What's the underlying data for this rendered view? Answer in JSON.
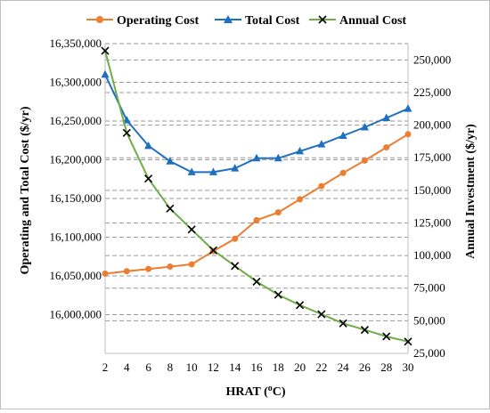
{
  "chart_data": {
    "type": "line",
    "xlabel": "HRAT (",
    "xlabel_sup": "o",
    "xlabel_end": "C)",
    "ylabel_left": "Operating and Total Cost ($/yr)",
    "ylabel_right": "Annual Investment ($/yr)",
    "x": [
      2,
      4,
      6,
      8,
      10,
      12,
      14,
      16,
      18,
      20,
      22,
      24,
      26,
      28,
      30
    ],
    "x_tick_labels": [
      "2",
      "4",
      "6",
      "8",
      "10",
      "12",
      "14",
      "16",
      "18",
      "20",
      "22",
      "24",
      "26",
      "28",
      "30"
    ],
    "y_left_range": [
      15950000,
      16350000
    ],
    "y_left_tick_labels": [
      "16,350,000",
      "16,300,000",
      "16,250,000",
      "16,200,000",
      "16,150,000",
      "16,100,000",
      "16,050,000",
      "16,000,000"
    ],
    "y_left_tick_values": [
      16350000,
      16300000,
      16250000,
      16200000,
      16150000,
      16100000,
      16050000,
      16000000
    ],
    "y_right_range": [
      25000,
      262500
    ],
    "y_right_tick_labels": [
      "250,000",
      "225,000",
      "200,000",
      "175,000",
      "150,000",
      "125,000",
      "100,000",
      "75,000",
      "50,000",
      "25,000"
    ],
    "y_right_tick_values": [
      250000,
      225000,
      200000,
      175000,
      150000,
      125000,
      100000,
      75000,
      50000,
      25000
    ],
    "grid": "horizontal-dashed",
    "legend_placement": "top",
    "series": [
      {
        "name": "Operating Cost",
        "axis": "left",
        "marker": "circle",
        "color": "#ED7D31",
        "values": [
          16053000,
          16056000,
          16059000,
          16062000,
          16065000,
          16082000,
          16098000,
          16122000,
          16132000,
          16149000,
          16166000,
          16183000,
          16199000,
          16216000,
          16233000
        ]
      },
      {
        "name": "Total Cost",
        "axis": "left",
        "marker": "triangle",
        "color": "#1F6FC0",
        "values": [
          16310000,
          16251000,
          16218000,
          16198000,
          16184000,
          16184000,
          16189000,
          16202000,
          16202000,
          16211000,
          16220000,
          16231000,
          16242000,
          16254000,
          16266000
        ]
      },
      {
        "name": "Annual Cost",
        "axis": "right",
        "marker": "x",
        "color": "#70AD47",
        "marker_color": "#000000",
        "values": [
          257000,
          194000,
          159000,
          136000,
          120000,
          104000,
          92000,
          80000,
          70000,
          62000,
          55000,
          48000,
          43000,
          38000,
          34000
        ]
      }
    ]
  }
}
